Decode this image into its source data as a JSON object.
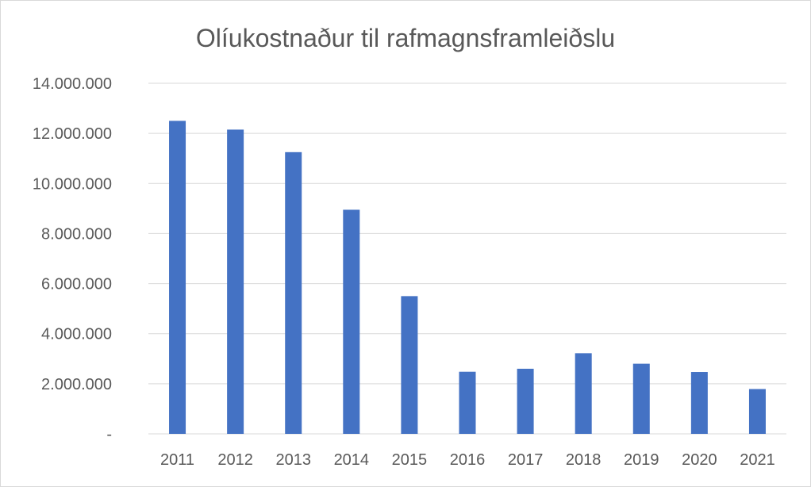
{
  "chart_data": {
    "type": "bar",
    "title": "Olíukostnaður til rafmagnsframleiðslu",
    "categories": [
      "2011",
      "2012",
      "2013",
      "2014",
      "2015",
      "2016",
      "2017",
      "2018",
      "2019",
      "2020",
      "2021"
    ],
    "values": [
      12500000,
      12150000,
      11250000,
      8950000,
      5500000,
      2480000,
      2600000,
      3220000,
      2800000,
      2470000,
      1790000
    ],
    "ylim": [
      0,
      14000000
    ],
    "yticks": [
      0,
      2000000,
      4000000,
      6000000,
      8000000,
      10000000,
      12000000,
      14000000
    ],
    "ytick_labels": [
      "-",
      "2.000.000",
      "4.000.000",
      "6.000.000",
      "8.000.000",
      "10.000.000",
      "12.000.000",
      "14.000.000"
    ],
    "xlabel": "",
    "ylabel": "",
    "grid": true,
    "legend": false,
    "bar_color": "#4472C4",
    "grid_color": "#D9D9D9",
    "text_color": "#595959"
  }
}
